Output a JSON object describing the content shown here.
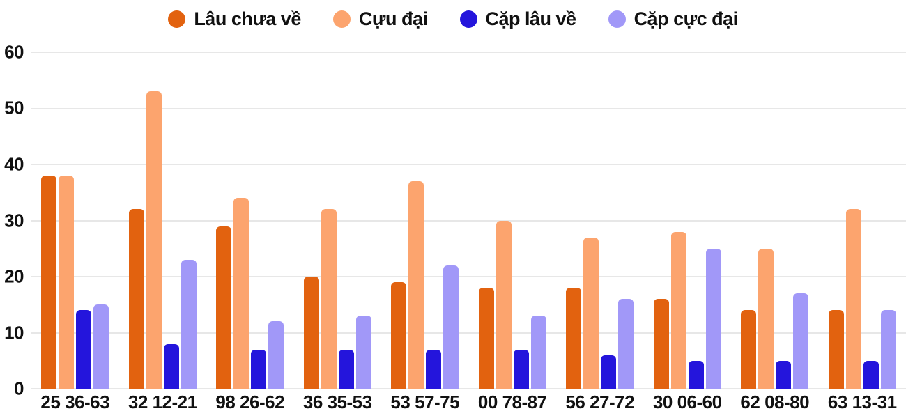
{
  "colors": {
    "background": "#FFFFFF",
    "gridline": "#E7E7E7",
    "text": "#111111"
  },
  "chart_data": {
    "type": "bar",
    "title": "",
    "xlabel": "",
    "ylabel": "",
    "categories": [
      "25 36-63",
      "32 12-21",
      "98 26-62",
      "36 35-53",
      "53 57-75",
      "00 78-87",
      "56 27-72",
      "30 06-60",
      "62 08-80",
      "63 13-31"
    ],
    "series": [
      {
        "name": "Lâu chưa về",
        "color": "#E2620F",
        "values": [
          38,
          32,
          29,
          20,
          19,
          18,
          18,
          16,
          14,
          14
        ]
      },
      {
        "name": "Cựu đại",
        "color": "#FCA46E",
        "values": [
          38,
          53,
          34,
          32,
          37,
          30,
          27,
          28,
          25,
          32
        ]
      },
      {
        "name": "Cặp lâu về",
        "color": "#2415DC",
        "values": [
          14,
          8,
          7,
          7,
          7,
          7,
          6,
          5,
          5,
          5
        ]
      },
      {
        "name": "Cặp cực đại",
        "color": "#A198F8",
        "values": [
          15,
          23,
          12,
          13,
          22,
          13,
          16,
          25,
          17,
          14
        ]
      }
    ],
    "ylim": [
      0,
      60
    ],
    "yticks": [
      0,
      10,
      20,
      30,
      40,
      50,
      60
    ],
    "grid": true,
    "legend_position": "top"
  }
}
